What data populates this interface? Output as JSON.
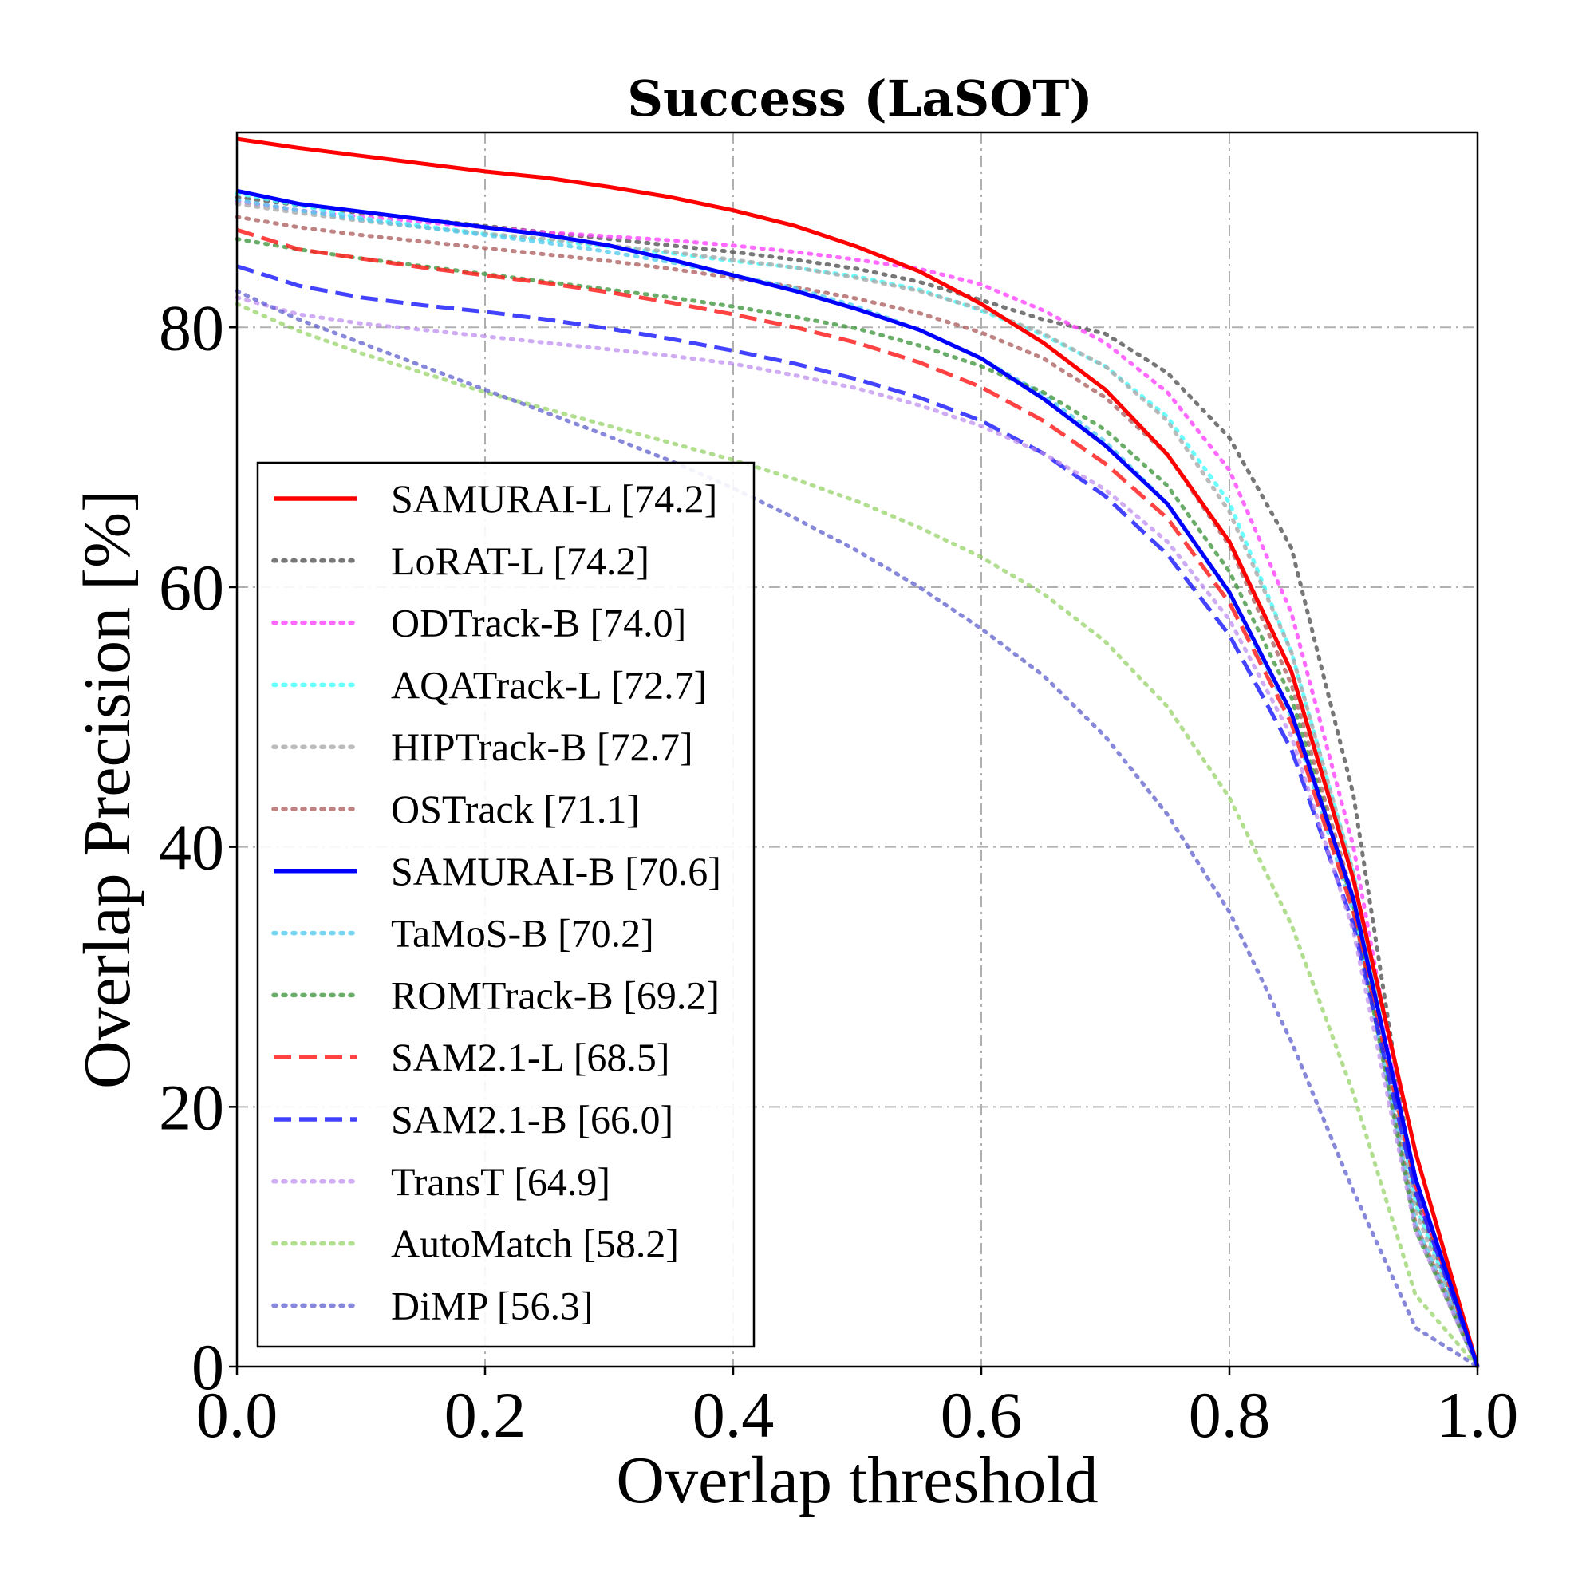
{
  "chart_data": {
    "type": "line",
    "title": "Success (LaSOT)",
    "xlabel": "Overlap threshold",
    "ylabel": "Overlap Precision [%]",
    "xlim": [
      0,
      1
    ],
    "ylim": [
      0,
      95
    ],
    "xticks": [
      "0.0",
      "0.2",
      "0.4",
      "0.6",
      "0.8",
      "1.0"
    ],
    "yticks": [
      "0",
      "20",
      "40",
      "60",
      "80"
    ],
    "grid": true,
    "legend_position": "lower-left",
    "x": [
      0.0,
      0.05,
      0.1,
      0.15,
      0.2,
      0.25,
      0.3,
      0.35,
      0.4,
      0.45,
      0.5,
      0.55,
      0.6,
      0.65,
      0.7,
      0.75,
      0.8,
      0.85,
      0.9,
      0.95,
      1.0
    ],
    "series": [
      {
        "name": "SAMURAI-L [74.2]",
        "color": "#ff0000",
        "style": "solid",
        "opacity": 1.0,
        "values": [
          94.5,
          93.8,
          93.2,
          92.6,
          92.0,
          91.5,
          90.8,
          90.0,
          89.0,
          87.8,
          86.2,
          84.3,
          81.8,
          78.8,
          75.2,
          70.2,
          63.5,
          53.5,
          37.5,
          16.5,
          0.0
        ]
      },
      {
        "name": "LoRAT-L [74.2]",
        "color": "#555555",
        "style": "dotted",
        "opacity": 0.8,
        "values": [
          90.0,
          89.4,
          88.8,
          88.3,
          87.8,
          87.3,
          86.8,
          86.3,
          85.8,
          85.2,
          84.5,
          83.5,
          82.1,
          80.6,
          79.5,
          76.5,
          71.5,
          63.0,
          44.0,
          13.0,
          0.0
        ]
      },
      {
        "name": "ODTrack-B [74.0]",
        "color": "#ff44ff",
        "style": "dotted",
        "opacity": 0.8,
        "values": [
          89.7,
          89.0,
          88.5,
          88.1,
          87.7,
          87.3,
          87.0,
          86.7,
          86.3,
          85.8,
          85.2,
          84.5,
          83.3,
          81.3,
          78.8,
          75.0,
          69.0,
          58.0,
          40.0,
          13.5,
          0.0
        ]
      },
      {
        "name": "AQATrack-L [72.7]",
        "color": "#44ffff",
        "style": "dotted",
        "opacity": 0.8,
        "values": [
          90.3,
          89.4,
          88.4,
          87.8,
          87.2,
          86.7,
          86.2,
          85.7,
          85.1,
          84.6,
          83.9,
          82.9,
          81.3,
          79.4,
          77.0,
          73.1,
          66.5,
          55.0,
          38.0,
          12.5,
          0.0
        ]
      },
      {
        "name": "HIPTrack-B [72.7]",
        "color": "#aaaaaa",
        "style": "dotted",
        "opacity": 0.8,
        "values": [
          89.5,
          88.8,
          88.2,
          87.7,
          87.2,
          86.8,
          86.3,
          85.8,
          85.2,
          84.6,
          83.8,
          82.8,
          81.4,
          79.5,
          77.0,
          72.8,
          65.8,
          55.0,
          38.0,
          12.0,
          0.0
        ]
      },
      {
        "name": "OSTrack [71.1]",
        "color": "#b06464",
        "style": "dotted",
        "opacity": 0.8,
        "values": [
          88.5,
          87.7,
          87.1,
          86.6,
          86.1,
          85.6,
          85.1,
          84.5,
          83.8,
          83.1,
          82.2,
          81.1,
          79.6,
          77.6,
          74.6,
          70.2,
          63.2,
          52.5,
          36.0,
          11.0,
          0.0
        ]
      },
      {
        "name": "SAMURAI-B [70.6]",
        "color": "#0000ff",
        "style": "solid",
        "opacity": 1.0,
        "values": [
          90.5,
          89.5,
          88.9,
          88.3,
          87.7,
          87.1,
          86.3,
          85.2,
          84.0,
          82.8,
          81.4,
          79.8,
          77.6,
          74.5,
          70.9,
          66.4,
          59.6,
          50.3,
          36.0,
          14.5,
          0.0
        ]
      },
      {
        "name": "TaMoS-B [70.2]",
        "color": "#55ccee",
        "style": "dotted",
        "opacity": 0.8,
        "values": [
          89.8,
          89.0,
          88.3,
          87.7,
          87.1,
          86.5,
          85.8,
          85.0,
          84.0,
          83.0,
          81.6,
          79.8,
          77.6,
          74.8,
          71.2,
          66.4,
          59.5,
          50.0,
          35.0,
          11.0,
          0.0
        ]
      },
      {
        "name": "ROMTrack-B [69.2]",
        "color": "#449944",
        "style": "dotted",
        "opacity": 0.8,
        "values": [
          86.8,
          86.0,
          85.3,
          84.7,
          84.1,
          83.5,
          82.9,
          82.3,
          81.6,
          80.8,
          79.9,
          78.6,
          77.0,
          75.0,
          72.1,
          67.8,
          61.2,
          51.5,
          35.5,
          10.5,
          0.0
        ]
      },
      {
        "name": "SAM2.1-L [68.5]",
        "color": "#ff2222",
        "style": "dashed",
        "opacity": 0.85,
        "values": [
          87.5,
          86.0,
          85.3,
          84.6,
          84.0,
          83.4,
          82.7,
          81.9,
          81.0,
          80.0,
          78.8,
          77.3,
          75.4,
          72.8,
          69.5,
          65.3,
          58.8,
          49.5,
          35.0,
          14.0,
          0.0
        ]
      },
      {
        "name": "SAM2.1-B [66.0]",
        "color": "#2222ff",
        "style": "dashed",
        "opacity": 0.85,
        "values": [
          84.7,
          83.2,
          82.3,
          81.7,
          81.2,
          80.6,
          79.9,
          79.1,
          78.2,
          77.2,
          76.0,
          74.6,
          72.8,
          70.3,
          67.0,
          62.5,
          56.3,
          47.5,
          34.0,
          13.5,
          0.0
        ]
      },
      {
        "name": "TransT [64.9]",
        "color": "#bb88ee",
        "style": "dotted",
        "opacity": 0.7,
        "values": [
          82.3,
          81.0,
          80.3,
          79.8,
          79.3,
          78.8,
          78.3,
          77.8,
          77.2,
          76.3,
          75.3,
          74.0,
          72.4,
          70.3,
          67.5,
          63.5,
          57.5,
          48.5,
          33.5,
          10.5,
          0.0
        ]
      },
      {
        "name": "AutoMatch [58.2]",
        "color": "#88cc55",
        "style": "dotted",
        "opacity": 0.65,
        "values": [
          81.8,
          79.7,
          78.0,
          76.5,
          75.0,
          73.7,
          72.4,
          71.1,
          69.8,
          68.3,
          66.6,
          64.6,
          62.3,
          59.5,
          55.8,
          50.8,
          43.8,
          34.0,
          21.0,
          5.5,
          0.0
        ]
      },
      {
        "name": "DiMP [56.3]",
        "color": "#5555cc",
        "style": "dotted",
        "opacity": 0.7,
        "values": [
          82.8,
          80.6,
          78.8,
          77.0,
          75.2,
          73.4,
          71.6,
          69.7,
          67.6,
          65.3,
          62.8,
          60.0,
          56.8,
          53.2,
          48.5,
          42.5,
          35.0,
          25.0,
          13.5,
          3.0,
          0.0
        ]
      }
    ]
  }
}
